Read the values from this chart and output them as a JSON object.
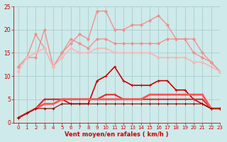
{
  "x": [
    0,
    1,
    2,
    3,
    4,
    5,
    6,
    7,
    8,
    9,
    10,
    11,
    12,
    13,
    14,
    15,
    16,
    17,
    18,
    19,
    20,
    21,
    22,
    23
  ],
  "lines": [
    {
      "y": [
        12,
        14,
        19,
        16,
        12,
        15,
        17,
        19,
        18,
        24,
        24,
        20,
        20,
        21,
        21,
        22,
        23,
        21,
        18,
        18,
        15,
        14,
        13,
        11
      ],
      "color": "#f09090",
      "lw": 1.0,
      "marker": "D",
      "ms": 2.0
    },
    {
      "y": [
        12,
        14,
        14,
        20,
        12,
        15,
        18,
        17,
        16,
        18,
        18,
        17,
        17,
        17,
        17,
        17,
        17,
        18,
        18,
        18,
        18,
        15,
        13,
        11
      ],
      "color": "#f09090",
      "lw": 1.0,
      "marker": "D",
      "ms": 2.0
    },
    {
      "y": [
        11,
        14,
        15,
        16,
        12,
        14,
        16,
        15,
        15,
        16,
        16,
        15,
        15,
        15,
        15,
        15,
        14,
        14,
        14,
        14,
        13,
        13,
        12,
        11
      ],
      "color": "#f4b8b8",
      "lw": 1.2,
      "marker": "D",
      "ms": 2.0
    },
    {
      "y": [
        1,
        2,
        3,
        5,
        5,
        5,
        4,
        4,
        4,
        9,
        10,
        12,
        9,
        8,
        8,
        8,
        9,
        9,
        7,
        7,
        5,
        4,
        3,
        3
      ],
      "color": "#cc0000",
      "lw": 1.2,
      "marker": "+",
      "ms": 3.5
    },
    {
      "y": [
        1,
        2,
        3,
        5,
        5,
        5,
        5,
        5,
        5,
        5,
        6,
        6,
        5,
        5,
        5,
        5,
        5,
        5,
        5,
        5,
        5,
        5,
        3,
        3
      ],
      "color": "#e03030",
      "lw": 1.5,
      "marker": "+",
      "ms": 2.5
    },
    {
      "y": [
        1,
        2,
        3,
        4,
        4,
        5,
        5,
        5,
        5,
        5,
        5,
        5,
        5,
        5,
        5,
        6,
        6,
        6,
        6,
        6,
        6,
        6,
        3,
        3
      ],
      "color": "#ff5555",
      "lw": 2.0,
      "marker": "+",
      "ms": 2.5
    },
    {
      "y": [
        1,
        2,
        3,
        3,
        3,
        4,
        4,
        4,
        4,
        4,
        4,
        4,
        4,
        4,
        4,
        4,
        4,
        4,
        4,
        4,
        4,
        4,
        3,
        3
      ],
      "color": "#880000",
      "lw": 0.8,
      "marker": "+",
      "ms": 2.5
    }
  ],
  "xlabel": "Vent moyen/en rafales ( km/h )",
  "xlim": [
    -0.5,
    23
  ],
  "ylim": [
    0,
    25
  ],
  "yticks": [
    0,
    5,
    10,
    15,
    20,
    25
  ],
  "xticks": [
    0,
    1,
    2,
    3,
    4,
    5,
    6,
    7,
    8,
    9,
    10,
    11,
    12,
    13,
    14,
    15,
    16,
    17,
    18,
    19,
    20,
    21,
    22,
    23
  ],
  "bg_color": "#ceeaea",
  "grid_color": "#aacece",
  "tick_color": "#cc0000",
  "label_color": "#cc0000"
}
